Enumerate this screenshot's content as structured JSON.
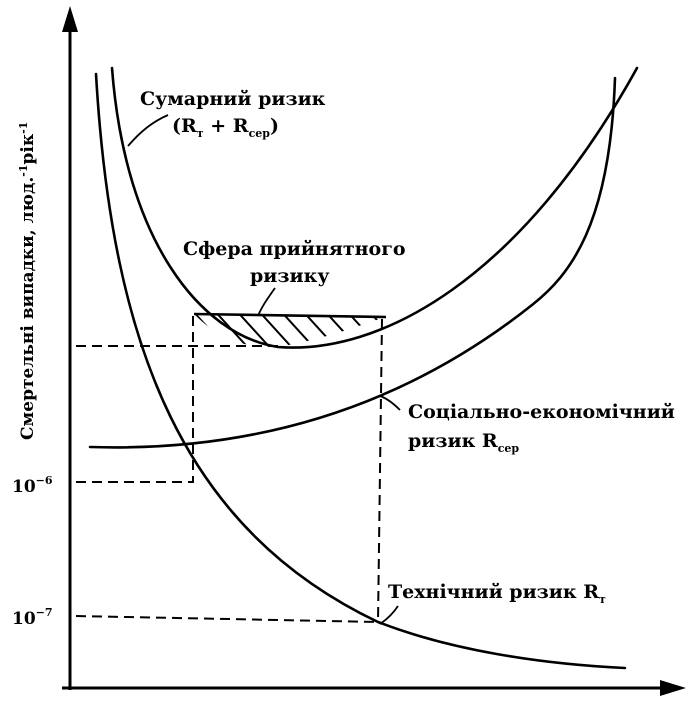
{
  "y_axis_label": "Смертельні випадки, люд.",
  "y_axis_unit_sup": "-1",
  "y_axis_label_tail": "рік",
  "tick_1e6": {
    "base": "10",
    "exp": "−6"
  },
  "tick_1e7": {
    "base": "10",
    "exp": "−7"
  },
  "total_risk": {
    "line1": "Сумарний ризик",
    "open": "(R",
    "sub_t": "т",
    "plus": " + R",
    "sub_ser": "сер",
    "close": ")"
  },
  "acceptable_risk": {
    "line1": "Сфера прийнятного",
    "line2": "ризику"
  },
  "social_risk": {
    "line1": "Соціально-економічний",
    "line2": "ризик R",
    "sub": "сер"
  },
  "tech_risk": {
    "text": "Технічний ризик R",
    "sub": "т"
  }
}
